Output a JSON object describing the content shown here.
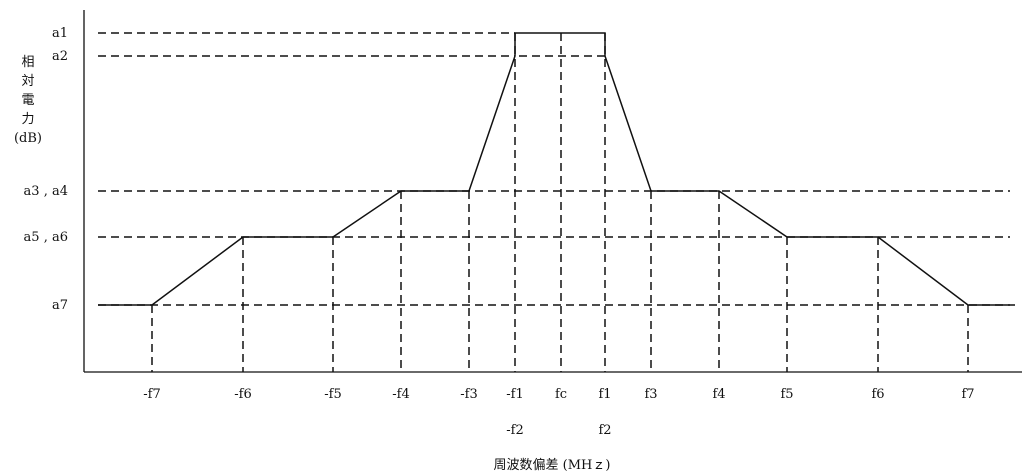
{
  "diagram": {
    "y_axis_label_chars": [
      "相",
      "対",
      "電",
      "力"
    ],
    "y_axis_unit": "(dB)",
    "x_axis_title": "周波数偏差 (MHｚ)",
    "level_labels": {
      "a1": "a1",
      "a2": "a2",
      "a3a4": "a3 , a4",
      "a5a6": "a5 , a6",
      "a7": "a7"
    },
    "freq_labels_row1": {
      "m_f7": "-f7",
      "m_f6": "-f6",
      "m_f5": "-f5",
      "m_f4": "-f4",
      "m_f3": "-f3",
      "m_f1": "-f1",
      "fc": "fc",
      "f1": "f1",
      "f3": "f3",
      "f4": "f4",
      "f5": "f5",
      "f6": "f6",
      "f7": "f7"
    },
    "freq_labels_row2": {
      "m_f2": "-f2",
      "f2": "f2"
    }
  }
}
